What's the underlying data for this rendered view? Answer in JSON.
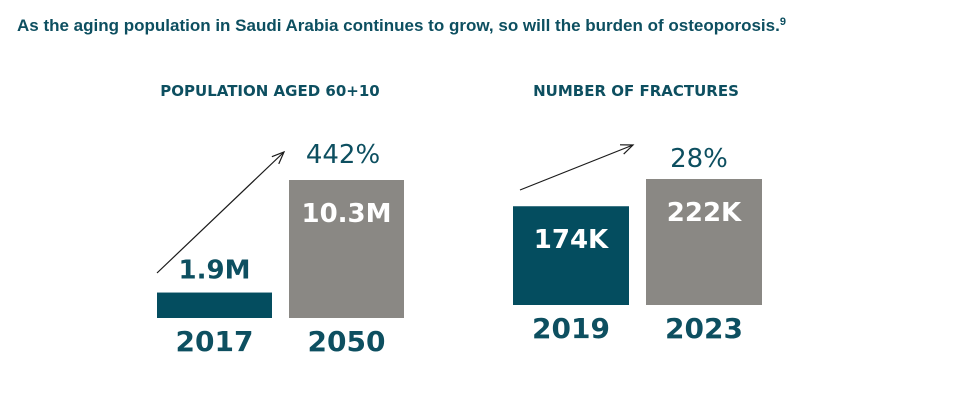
{
  "headline": {
    "text": "As the aging population in Saudi Arabia continues to grow, so will the burden of osteoporosis.",
    "footnote": "9"
  },
  "colors": {
    "headline": "#0d4f60",
    "dark_bar": "#044d5f",
    "gray_bar": "#8a8884",
    "label": "#0d4f60",
    "bar_text": "#ffffff"
  },
  "chart_data": [
    {
      "type": "bar",
      "title": "POPULATION AGED 60+10",
      "categories": [
        "2017",
        "2050"
      ],
      "values": [
        1.9,
        10.3
      ],
      "value_labels": [
        "1.9M",
        "10.3M"
      ],
      "unit": "M",
      "growth_label": "442%",
      "ylim": [
        0,
        10.3
      ],
      "legend": "none"
    },
    {
      "type": "bar",
      "title": "NUMBER OF FRACTURES",
      "categories": [
        "2019",
        "2023"
      ],
      "values": [
        174,
        222
      ],
      "value_labels": [
        "174K",
        "222K"
      ],
      "unit": "K",
      "growth_label": "28%",
      "ylim": [
        0,
        222
      ],
      "legend": "none"
    }
  ]
}
